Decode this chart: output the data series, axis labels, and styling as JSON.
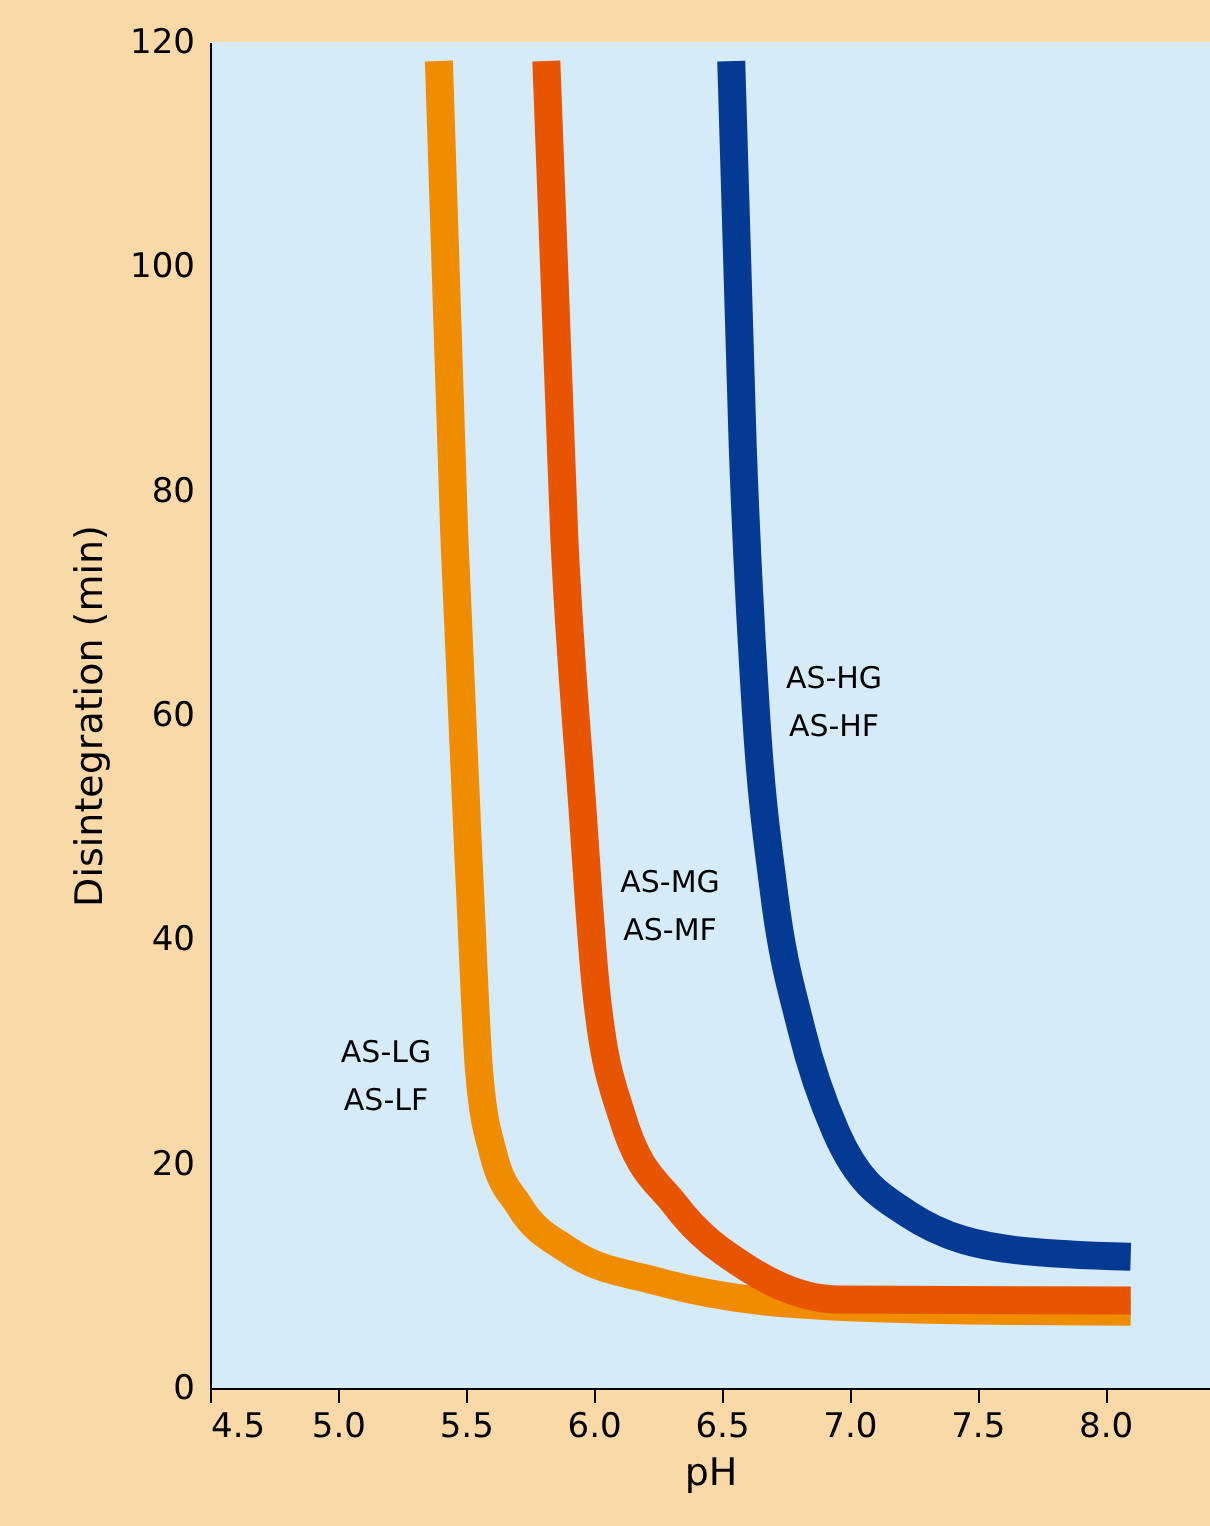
{
  "chart_data": {
    "type": "line",
    "xlabel": "pH",
    "ylabel": "Disintegration (min)",
    "xlim": [
      4.5,
      8.41
    ],
    "ylim": [
      0,
      120
    ],
    "xticks": [
      {
        "value": 4.5,
        "label": "4.5"
      },
      {
        "value": 5,
        "label": "5.0"
      },
      {
        "value": 5.5,
        "label": "5.5"
      },
      {
        "value": 6,
        "label": "6.0"
      },
      {
        "value": 6.5,
        "label": "6.5"
      },
      {
        "value": 7,
        "label": "7.0"
      },
      {
        "value": 7.5,
        "label": "7.5"
      },
      {
        "value": 8,
        "label": "8.0"
      }
    ],
    "yticks": [
      0,
      20,
      40,
      60,
      80,
      100,
      120
    ],
    "grid": false,
    "legend": false,
    "marker": "none",
    "line_style": "solid",
    "series": [
      {
        "name": "AS-LG\nAS-LF",
        "color": "#f08c00",
        "x": [
          5.395,
          5.455,
          5.517,
          5.552,
          5.605,
          5.71,
          5.9,
          6.25,
          6.775,
          7.47,
          8.1
        ],
        "values": [
          118.3,
          76.1,
          44.2,
          28.3,
          21.1,
          16.2,
          12.3,
          9.5,
          7.5,
          6.9,
          6.8
        ]
      },
      {
        "name": "AS-MG\nAS-MF",
        "color": "#e85500",
        "x": [
          5.815,
          5.885,
          5.955,
          6.006,
          6.11,
          6.32,
          6.6,
          6.95,
          8.1
        ],
        "values": [
          118.3,
          76.0,
          52.1,
          36.3,
          24.3,
          16.3,
          10.7,
          7.9,
          7.8
        ]
      },
      {
        "name": "AS-HG\nAS-HF",
        "color": "#053a94",
        "x": [
          6.538,
          6.583,
          6.635,
          6.705,
          6.81,
          6.95,
          7.23,
          7.65,
          8.1
        ],
        "values": [
          118.3,
          83.9,
          60.1,
          44.2,
          32.2,
          22.7,
          15.5,
          12.3,
          11.7
        ]
      }
    ]
  }
}
